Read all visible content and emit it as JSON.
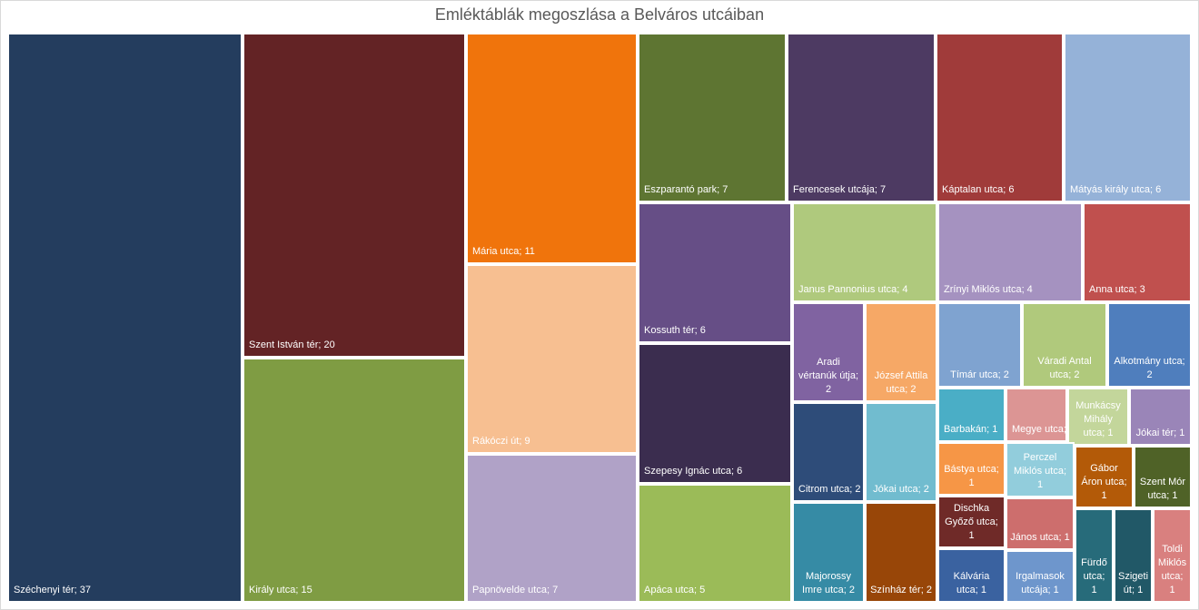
{
  "chart_data": {
    "type": "treemap",
    "title": "Emléktáblák megoszlása a Belváros utcáiban",
    "items": [
      {
        "name": "Széchenyi tér",
        "value": 37,
        "label": "Széchenyi tér; 37",
        "color": "#243d5e"
      },
      {
        "name": "Szent István tér",
        "value": 20,
        "label": "Szent István tér; 20",
        "color": "#632325"
      },
      {
        "name": "Király utca",
        "value": 15,
        "label": "Király utca; 15",
        "color": "#7f9c43"
      },
      {
        "name": "Mária utca",
        "value": 11,
        "label": "Mária utca; 11",
        "color": "#f0740c"
      },
      {
        "name": "Rákóczi út",
        "value": 9,
        "label": "Rákóczi út; 9",
        "color": "#f7bf91"
      },
      {
        "name": "Papnövelde utca",
        "value": 7,
        "label": "Papnövelde utca; 7",
        "color": "#b0a2c7"
      },
      {
        "name": "Eszparantó park",
        "value": 7,
        "label": "Eszparantó park; 7",
        "color": "#5e7532"
      },
      {
        "name": "Ferencesek utcája",
        "value": 7,
        "label": "Ferencesek utcája; 7",
        "color": "#4d3a62"
      },
      {
        "name": "Káptalan utca",
        "value": 6,
        "label": "Káptalan utca; 6",
        "color": "#a03b3a"
      },
      {
        "name": "Mátyás király utca",
        "value": 6,
        "label": "Mátyás király utca; 6",
        "color": "#95b2d8"
      },
      {
        "name": "Kossuth tér",
        "value": 6,
        "label": "Kossuth tér; 6",
        "color": "#664e86"
      },
      {
        "name": "Szepesy Ignác utca",
        "value": 6,
        "label": "Szepesy Ignác utca; 6",
        "color": "#3b2d4f"
      },
      {
        "name": "Apáca utca",
        "value": 5,
        "label": "Apáca utca; 5",
        "color": "#9bbb58"
      },
      {
        "name": "Janus Pannonius utca",
        "value": 4,
        "label": "Janus Pannonius utca; 4",
        "color": "#afc97d"
      },
      {
        "name": "Zrínyi Miklós utca",
        "value": 4,
        "label": "Zrínyi Miklós utca; 4",
        "color": "#a592c0"
      },
      {
        "name": "Anna utca",
        "value": 3,
        "label": "Anna utca; 3",
        "color": "#c0504e"
      },
      {
        "name": "Aradi vértanúk útja",
        "value": 2,
        "label": "Aradi vértanúk útja; 2",
        "color": "#8063a1"
      },
      {
        "name": "József Attila utca",
        "value": 2,
        "label": "József Attila utca; 2",
        "color": "#f6a866"
      },
      {
        "name": "Tímár utca",
        "value": 2,
        "label": "Tímár utca; 2",
        "color": "#7fa3d0"
      },
      {
        "name": "Váradi Antal utca",
        "value": 2,
        "label": "Váradi Antal utca; 2",
        "color": "#b0c97c"
      },
      {
        "name": "Alkotmány utca",
        "value": 2,
        "label": "Alkotmány utca; 2",
        "color": "#4f7ebd"
      },
      {
        "name": "Citrom utca",
        "value": 2,
        "label": "Citrom utca; 2",
        "color": "#2e4c79"
      },
      {
        "name": "Jókai utca",
        "value": 2,
        "label": "Jókai utca; 2",
        "color": "#71bccf"
      },
      {
        "name": "Majorossy Imre utca",
        "value": 2,
        "label": "Majorossy Imre utca; 2",
        "color": "#368ba5"
      },
      {
        "name": "Színház tér",
        "value": 2,
        "label": "Színház tér; 2",
        "color": "#984608"
      },
      {
        "name": "Barbakán",
        "value": 1,
        "label": "Barbakán; 1",
        "color": "#4aaec6"
      },
      {
        "name": "Megye utca",
        "value": 1,
        "label": "Megye utca; 1",
        "color": "#dc9594"
      },
      {
        "name": "Munkácsy Mihály utca",
        "value": 1,
        "label": "Munkácsy Mihály utca; 1",
        "color": "#c3d69b"
      },
      {
        "name": "Jókai tér",
        "value": 1,
        "label": "Jókai tér; 1",
        "color": "#9a85b8"
      },
      {
        "name": "Bástya utca",
        "value": 1,
        "label": "Bástya utca; 1",
        "color": "#f69646"
      },
      {
        "name": "Perczel Miklós utca",
        "value": 1,
        "label": "Perczel Miklós utca; 1",
        "color": "#92cddc"
      },
      {
        "name": "Gábor Áron utca",
        "value": 1,
        "label": "Gábor Áron utca; 1",
        "color": "#b35a08"
      },
      {
        "name": "Szent Mór utca",
        "value": 1,
        "label": "Szent Mór utca; 1",
        "color": "#4f6227"
      },
      {
        "name": "Dischka Győző utca",
        "value": 1,
        "label": "Dischka Győző utca; 1",
        "color": "#6f2a28"
      },
      {
        "name": "János utca",
        "value": 1,
        "label": "János utca; 1",
        "color": "#cd6e6d"
      },
      {
        "name": "Kálvária utca",
        "value": 1,
        "label": "Kálvária utca; 1",
        "color": "#3a62a0"
      },
      {
        "name": "Irgalmasok utcája",
        "value": 1,
        "label": "Irgalmasok utcája; 1",
        "color": "#6e96cc"
      },
      {
        "name": "Fürdő utca",
        "value": 1,
        "label": "Fürdő utca; 1",
        "color": "#276b7a"
      },
      {
        "name": "Szigeti út",
        "value": 1,
        "label": "Szigeti út; 1",
        "color": "#215867"
      },
      {
        "name": "Toldi Miklós utca",
        "value": 1,
        "label": "Toldi Miklós utca; 1",
        "color": "#d9807f"
      }
    ]
  }
}
